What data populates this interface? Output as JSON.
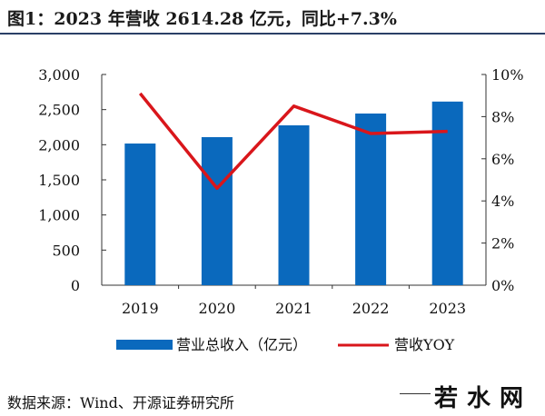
{
  "title": "图1：2023 年营收 2614.28 亿元，同比+7.3%",
  "source": "数据来源：Wind、开源证券研究所",
  "watermark": "若水网",
  "colors": {
    "bar": "#0a69bd",
    "line": "#d9161b"
  },
  "chart_data": {
    "type": "bar+line",
    "categories": [
      "2019",
      "2020",
      "2021",
      "2022",
      "2023"
    ],
    "series": [
      {
        "name": "营业总收入（亿元）",
        "type": "bar",
        "axis": "left",
        "values": [
          2017,
          2108,
          2276,
          2444,
          2614.28
        ]
      },
      {
        "name": "营收YOY",
        "type": "line",
        "axis": "right",
        "values": [
          9.1,
          4.6,
          8.5,
          7.2,
          7.3
        ]
      }
    ],
    "y_left": {
      "range": [
        0,
        3000
      ],
      "ticks": [
        "0",
        "500",
        "1,000",
        "1,500",
        "2,000",
        "2,500",
        "3,000"
      ]
    },
    "y_right": {
      "range": [
        0,
        10
      ],
      "ticks": [
        "0%",
        "2%",
        "4%",
        "6%",
        "8%",
        "10%"
      ]
    },
    "grid": false,
    "legend": "bottom"
  }
}
